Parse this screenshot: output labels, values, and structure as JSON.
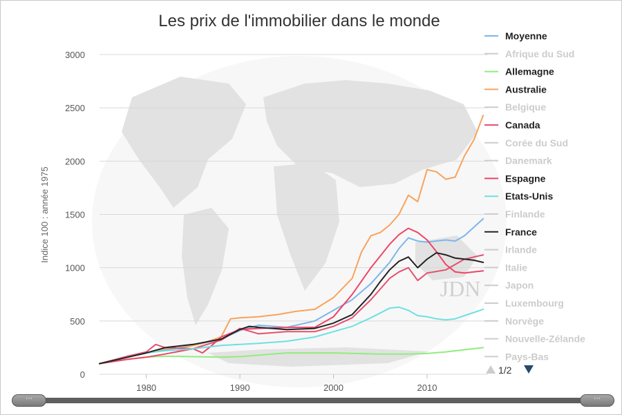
{
  "chart_data": {
    "type": "line",
    "title": "Les prix de l'immobilier dans le monde",
    "xlabel": "",
    "ylabel": "Indice 100 : année 1975",
    "xlim": [
      1975,
      2016.5
    ],
    "ylim": [
      0,
      3000
    ],
    "xticks": [
      1980,
      1990,
      2000,
      2010
    ],
    "yticks": [
      0,
      500,
      1000,
      1500,
      2000,
      2500,
      3000
    ],
    "grid": true,
    "legend_position": "right",
    "series": [
      {
        "name": "Moyenne",
        "color": "#7cb5ec",
        "visible": true,
        "x": [
          1975,
          1980,
          1985,
          1988,
          1990,
          1992,
          1995,
          1998,
          2000,
          2002,
          2004,
          2006,
          2007,
          2008,
          2009,
          2010,
          2012,
          2013,
          2014,
          2015,
          2016
        ],
        "y": [
          100,
          200,
          270,
          330,
          410,
          460,
          440,
          500,
          600,
          700,
          850,
          1050,
          1180,
          1280,
          1250,
          1240,
          1260,
          1250,
          1300,
          1380,
          1460
        ]
      },
      {
        "name": "Afrique du Sud",
        "color": "#cccccc",
        "visible": false,
        "x": [],
        "y": []
      },
      {
        "name": "Allemagne",
        "color": "#90ed7d",
        "visible": true,
        "x": [
          1975,
          1978,
          1980,
          1982,
          1985,
          1988,
          1990,
          1995,
          2000,
          2005,
          2008,
          2010,
          2012,
          2014,
          2016
        ],
        "y": [
          100,
          140,
          160,
          170,
          165,
          160,
          165,
          200,
          200,
          190,
          190,
          195,
          210,
          230,
          250
        ]
      },
      {
        "name": "Australie",
        "color": "#f7a35c",
        "visible": true,
        "x": [
          1975,
          1978,
          1980,
          1982,
          1984,
          1986,
          1988,
          1989,
          1990,
          1992,
          1994,
          1996,
          1998,
          2000,
          2002,
          2003,
          2004,
          2005,
          2006,
          2007,
          2008,
          2009,
          2010,
          2011,
          2012,
          2013,
          2014,
          2015,
          2016
        ],
        "y": [
          100,
          160,
          200,
          240,
          250,
          290,
          350,
          520,
          530,
          540,
          560,
          590,
          610,
          720,
          900,
          1150,
          1300,
          1330,
          1400,
          1500,
          1680,
          1620,
          1920,
          1900,
          1830,
          1850,
          2050,
          2200,
          2430
        ]
      },
      {
        "name": "Belgique",
        "color": "#cccccc",
        "visible": false,
        "x": [],
        "y": []
      },
      {
        "name": "Canada",
        "color": "#e4506e",
        "visible": true,
        "x": [
          1975,
          1978,
          1980,
          1981,
          1982,
          1985,
          1988,
          1990,
          1992,
          1995,
          1998,
          2000,
          2002,
          2004,
          2006,
          2007,
          2008,
          2009,
          2010,
          2012,
          2014,
          2016
        ],
        "y": [
          100,
          170,
          210,
          280,
          250,
          240,
          320,
          430,
          380,
          400,
          400,
          450,
          530,
          700,
          900,
          960,
          1000,
          880,
          950,
          980,
          1080,
          1120
        ]
      },
      {
        "name": "Corée du Sud",
        "color": "#cccccc",
        "visible": false,
        "x": [],
        "y": []
      },
      {
        "name": "Danemark",
        "color": "#cccccc",
        "visible": false,
        "x": [],
        "y": []
      },
      {
        "name": "Espagne",
        "color": "#ee4466",
        "visible": true,
        "x": [
          1975,
          1978,
          1980,
          1982,
          1985,
          1986,
          1987,
          1988,
          1990,
          1992,
          1995,
          1998,
          2000,
          2002,
          2004,
          2006,
          2007,
          2008,
          2009,
          2010,
          2011,
          2012,
          2013,
          2014,
          2015,
          2016
        ],
        "y": [
          100,
          140,
          160,
          190,
          240,
          200,
          270,
          350,
          420,
          430,
          440,
          440,
          540,
          750,
          1000,
          1220,
          1310,
          1370,
          1330,
          1260,
          1150,
          1030,
          960,
          950,
          960,
          970
        ]
      },
      {
        "name": "Etats-Unis",
        "color": "#6ee0e0",
        "visible": true,
        "x": [
          1975,
          1978,
          1980,
          1982,
          1985,
          1988,
          1990,
          1992,
          1995,
          1998,
          2000,
          2002,
          2004,
          2006,
          2007,
          2008,
          2009,
          2010,
          2011,
          2012,
          2013,
          2014,
          2015,
          2016
        ],
        "y": [
          100,
          160,
          200,
          220,
          240,
          270,
          280,
          290,
          310,
          350,
          400,
          450,
          530,
          620,
          630,
          600,
          550,
          540,
          520,
          510,
          520,
          550,
          580,
          610
        ]
      },
      {
        "name": "Finlande",
        "color": "#cccccc",
        "visible": false,
        "x": [],
        "y": []
      },
      {
        "name": "France",
        "color": "#222222",
        "visible": true,
        "x": [
          1975,
          1978,
          1980,
          1982,
          1985,
          1988,
          1990,
          1991,
          1992,
          1995,
          1998,
          2000,
          2002,
          2004,
          2005,
          2006,
          2007,
          2008,
          2009,
          2010,
          2011,
          2012,
          2013,
          2014,
          2015,
          2016
        ],
        "y": [
          100,
          160,
          200,
          250,
          280,
          330,
          420,
          450,
          440,
          420,
          430,
          480,
          560,
          750,
          870,
          980,
          1060,
          1100,
          1000,
          1080,
          1140,
          1120,
          1090,
          1080,
          1070,
          1050
        ]
      },
      {
        "name": "Irlande",
        "color": "#cccccc",
        "visible": false,
        "x": [],
        "y": []
      },
      {
        "name": "Italie",
        "color": "#cccccc",
        "visible": false,
        "x": [],
        "y": []
      },
      {
        "name": "Japon",
        "color": "#cccccc",
        "visible": false,
        "x": [],
        "y": []
      },
      {
        "name": "Luxembourg",
        "color": "#cccccc",
        "visible": false,
        "x": [],
        "y": []
      },
      {
        "name": "Norvège",
        "color": "#cccccc",
        "visible": false,
        "x": [],
        "y": []
      },
      {
        "name": "Nouvelle-Zélande",
        "color": "#cccccc",
        "visible": false,
        "x": [],
        "y": []
      },
      {
        "name": "Pays-Bas",
        "color": "#cccccc",
        "visible": false,
        "x": [],
        "y": []
      }
    ]
  },
  "watermark": "JDN",
  "legend": {
    "pager": "1/2",
    "page": 1,
    "pages": 2,
    "hidden_color": "#cccccc",
    "arrow_up_color": "#cccccc",
    "arrow_down_color": "#274b6d"
  },
  "scrollbar": {
    "handle_left_label": "⋯",
    "handle_right_label": "⋯"
  }
}
